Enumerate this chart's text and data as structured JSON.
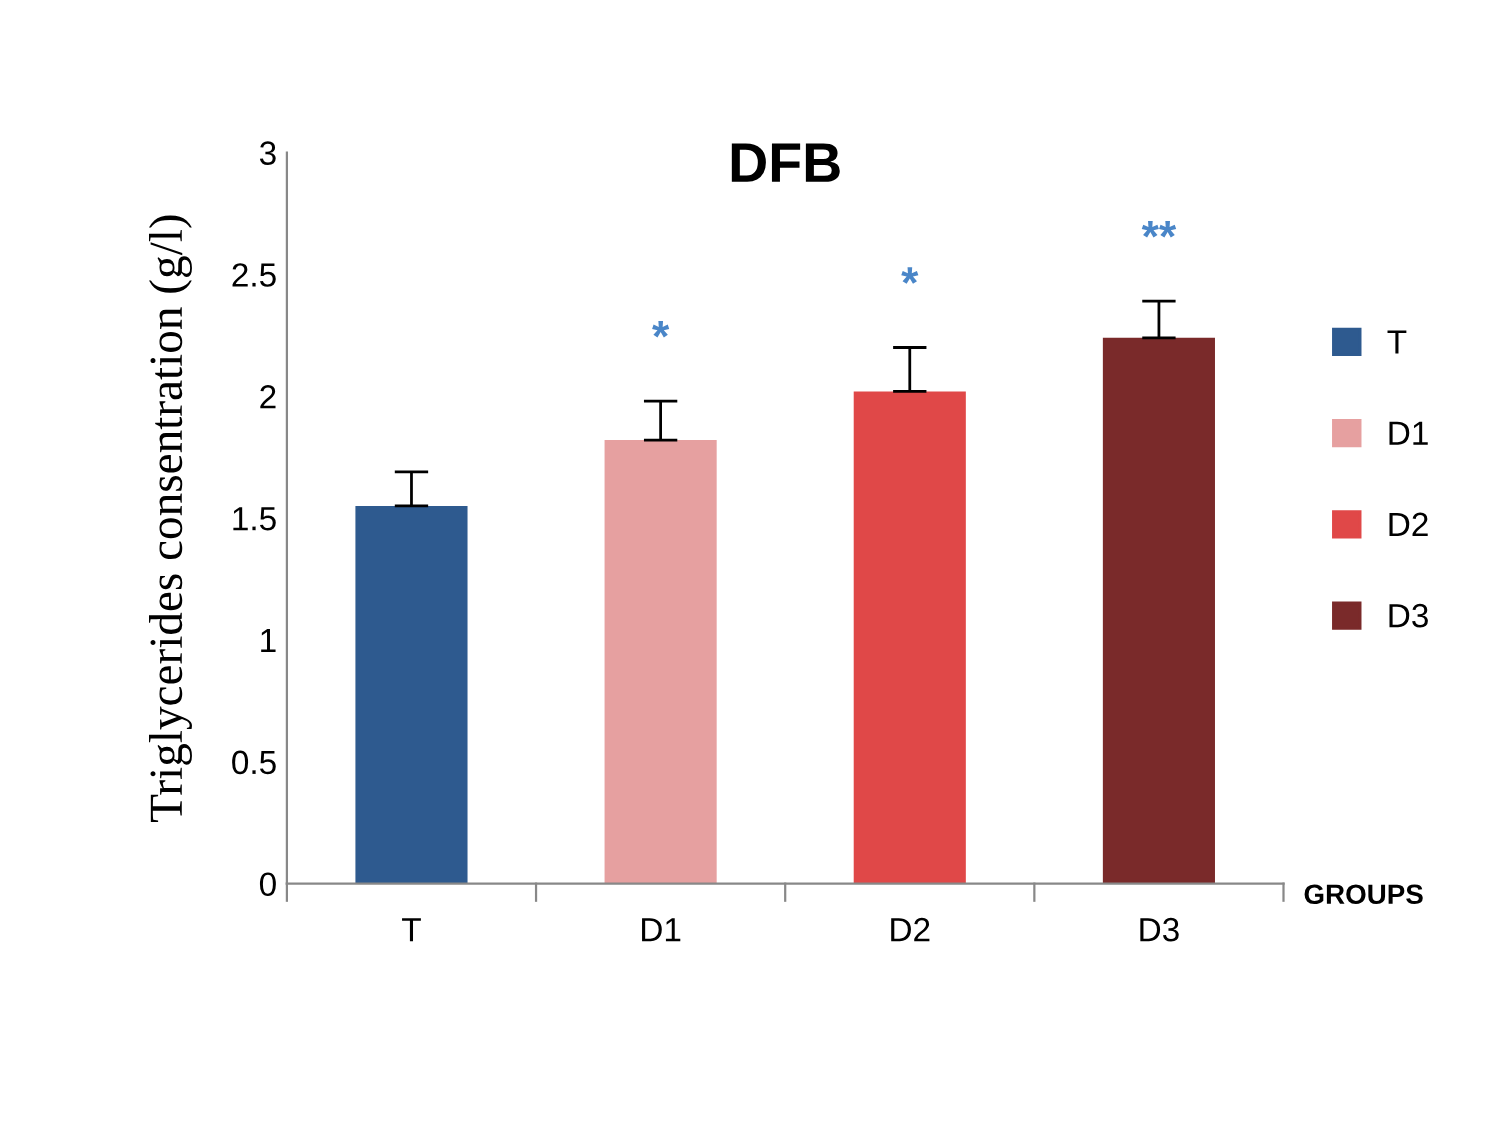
{
  "chart_data": {
    "type": "bar",
    "title": "DFB",
    "xlabel": "GROUPS",
    "ylabel": "Triglycerides consentration (g/l)",
    "categories": [
      "T",
      "D1",
      "D2",
      "D3"
    ],
    "series": [
      {
        "name": "T",
        "color": "#2e5a8f",
        "values": [
          1.55,
          null,
          null,
          null
        ],
        "errors": [
          0.14,
          null,
          null,
          null
        ]
      },
      {
        "name": "D1",
        "color": "#e6a0a0",
        "values": [
          null,
          1.82,
          null,
          null
        ],
        "errors": [
          null,
          0.16,
          null,
          null
        ]
      },
      {
        "name": "D2",
        "color": "#e04848",
        "values": [
          null,
          null,
          2.02,
          null
        ],
        "errors": [
          null,
          null,
          0.18,
          null
        ]
      },
      {
        "name": "D3",
        "color": "#7a2a2a",
        "values": [
          null,
          null,
          null,
          2.24
        ],
        "errors": [
          null,
          null,
          null,
          0.15
        ]
      }
    ],
    "annotations": [
      {
        "text": "*",
        "x": "D1",
        "y": 1.82
      },
      {
        "text": "*",
        "x": "D2",
        "y": 2.02
      },
      {
        "text": "**",
        "x": "D3",
        "y": 2.24
      }
    ],
    "ylim": [
      0,
      3
    ],
    "yticks": [
      0,
      0.5,
      1,
      1.5,
      2,
      2.5,
      3
    ],
    "grid": false,
    "legend": "right"
  }
}
